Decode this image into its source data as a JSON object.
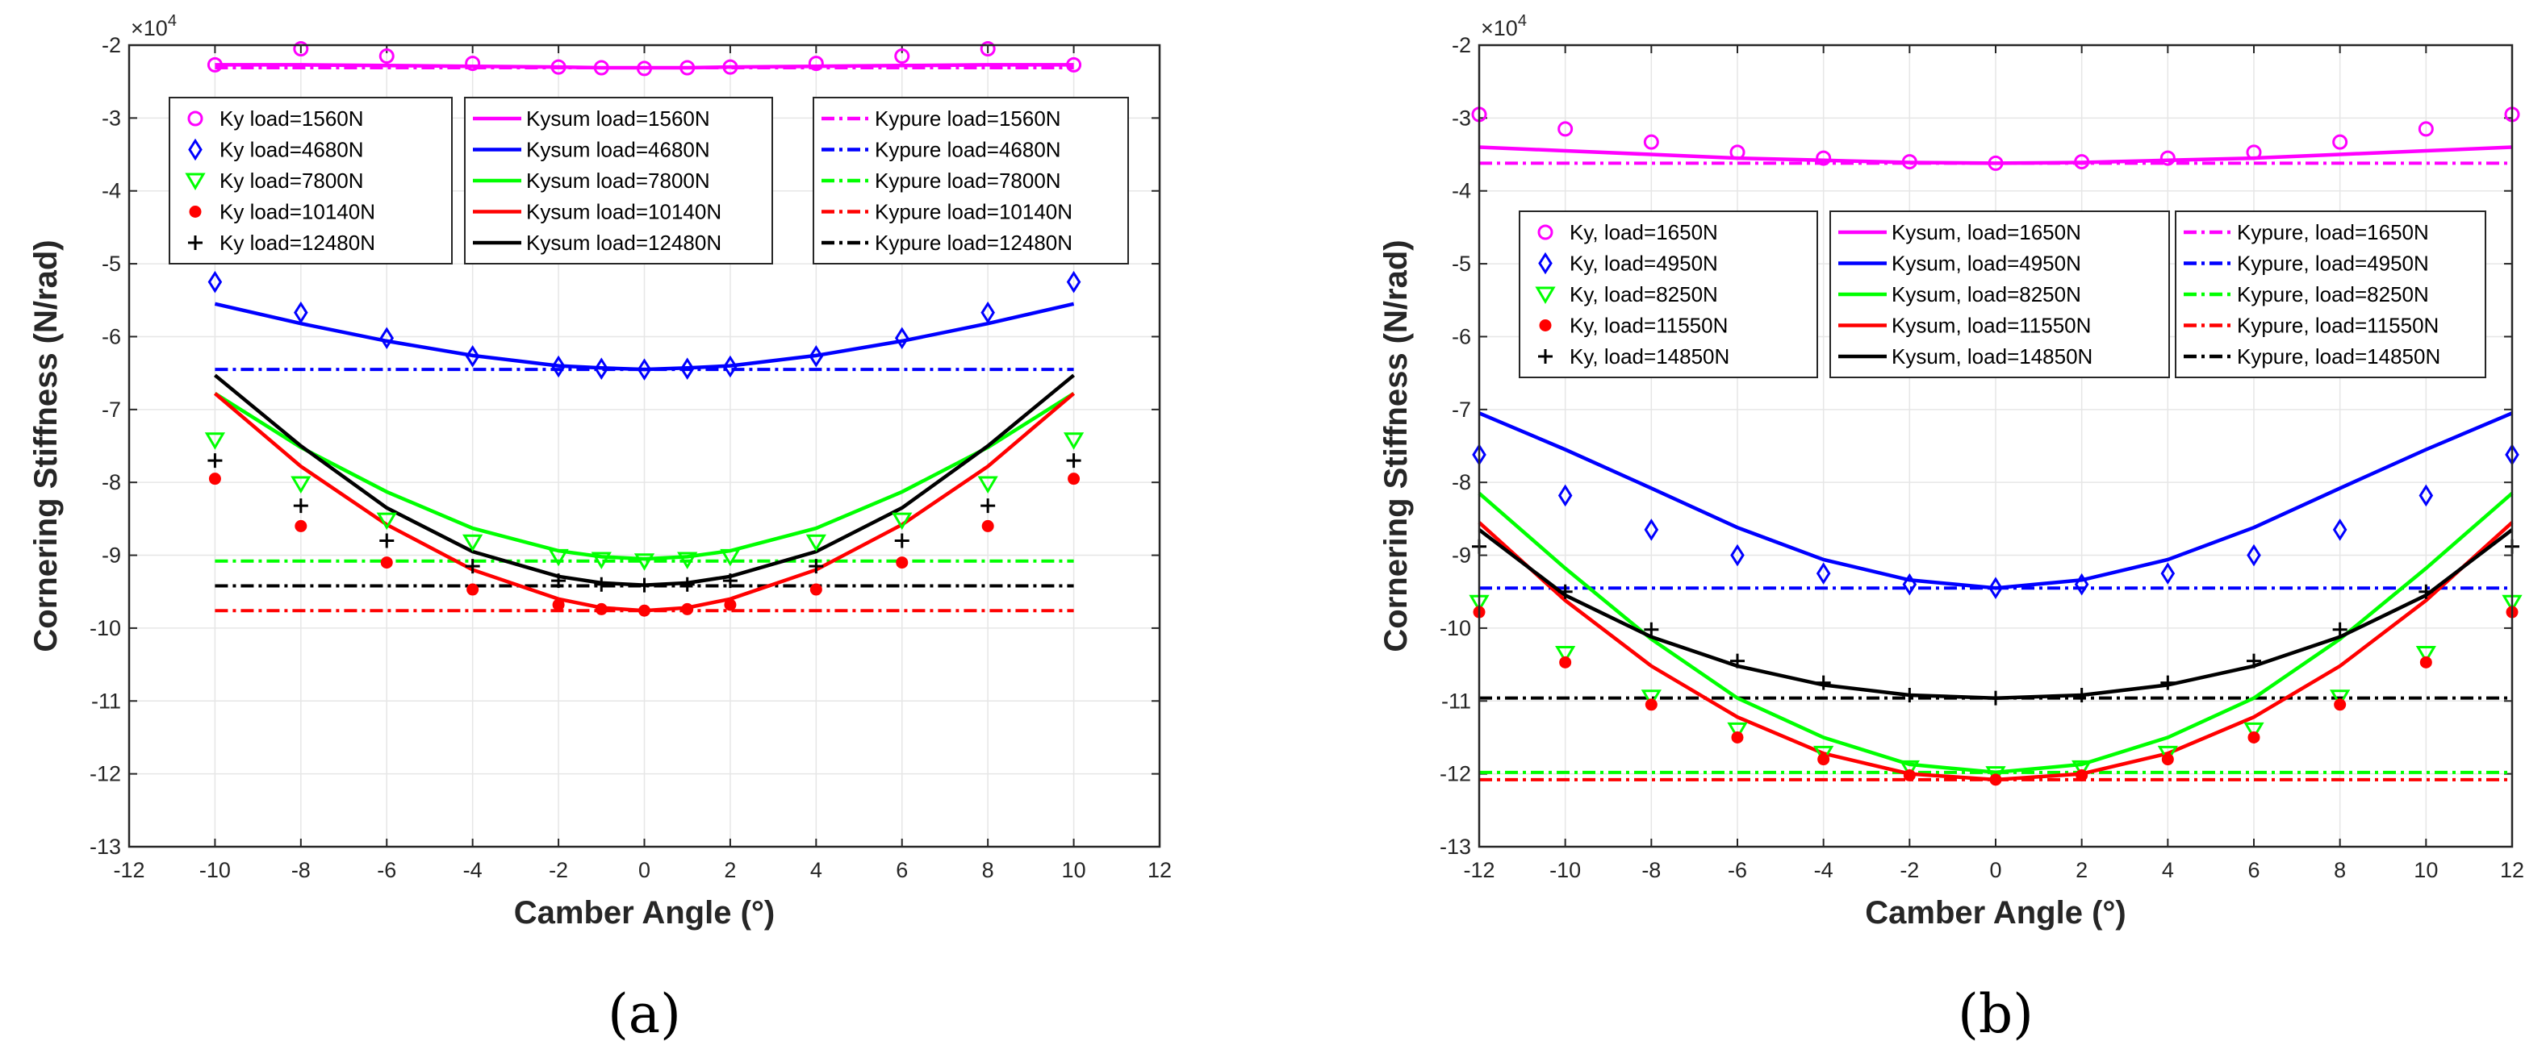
{
  "chart_data": [
    {
      "type": "line",
      "panel_label": "(a)",
      "xlabel": "Camber Angle (°)",
      "ylabel": "Cornering Stiffness (N/rad)",
      "y_exponent": "×10",
      "y_exponent_power": "4",
      "xlim": [
        -12,
        12
      ],
      "ylim": [
        -13,
        -2
      ],
      "xticks": [
        -12,
        -10,
        -8,
        -6,
        -4,
        -2,
        0,
        2,
        4,
        6,
        8,
        10,
        12
      ],
      "yticks": [
        -13,
        -12,
        -11,
        -10,
        -9,
        -8,
        -7,
        -6,
        -5,
        -4,
        -3,
        -2
      ],
      "grid": true,
      "ky_x": [
        -10,
        -8,
        -6,
        -4,
        -2,
        -1,
        0,
        1,
        2,
        4,
        6,
        8,
        10
      ],
      "curve_x": [
        -10,
        -8,
        -6,
        -4,
        -2,
        -1,
        0,
        1,
        2,
        4,
        6,
        8,
        10
      ],
      "series": [
        {
          "name": "Ky load=1560N",
          "group": "ky",
          "color": "#ff00ff",
          "marker": "circle",
          "values": [
            -2.27,
            -2.05,
            -2.15,
            -2.25,
            -2.3,
            -2.31,
            -2.32,
            -2.31,
            -2.3,
            -2.25,
            -2.15,
            -2.05,
            -2.27
          ]
        },
        {
          "name": "Ky load=4680N",
          "group": "ky",
          "color": "#0000ff",
          "marker": "diamond",
          "values": [
            -5.25,
            -5.67,
            -6.02,
            -6.27,
            -6.41,
            -6.44,
            -6.45,
            -6.44,
            -6.41,
            -6.27,
            -6.02,
            -5.67,
            -5.25
          ]
        },
        {
          "name": "Ky load=7800N",
          "group": "ky",
          "color": "#00ff00",
          "marker": "triangle",
          "values": [
            -7.42,
            -8.02,
            -8.52,
            -8.82,
            -9.02,
            -9.06,
            -9.08,
            -9.06,
            -9.02,
            -8.82,
            -8.52,
            -8.02,
            -7.42
          ]
        },
        {
          "name": "Ky load=10140N",
          "group": "ky",
          "color": "#ff0000",
          "marker": "dot",
          "values": [
            -7.95,
            -8.6,
            -9.1,
            -9.47,
            -9.68,
            -9.74,
            -9.76,
            -9.74,
            -9.68,
            -9.47,
            -9.1,
            -8.6,
            -7.95
          ]
        },
        {
          "name": "Ky load=12480N",
          "group": "ky",
          "color": "#000000",
          "marker": "plus",
          "values": [
            -7.7,
            -8.32,
            -8.8,
            -9.15,
            -9.35,
            -9.4,
            -9.41,
            -9.4,
            -9.35,
            -9.15,
            -8.8,
            -8.32,
            -7.7
          ]
        },
        {
          "name": "Kysum load=1560N",
          "group": "kysum",
          "color": "#ff00ff",
          "values": [
            -2.27,
            -2.27,
            -2.28,
            -2.29,
            -2.3,
            -2.31,
            -2.31,
            -2.31,
            -2.3,
            -2.29,
            -2.28,
            -2.27,
            -2.27
          ]
        },
        {
          "name": "Kysum load=4680N",
          "group": "kysum",
          "color": "#0000ff",
          "values": [
            -5.55,
            -5.82,
            -6.06,
            -6.26,
            -6.4,
            -6.43,
            -6.45,
            -6.43,
            -6.4,
            -6.26,
            -6.06,
            -5.82,
            -5.55
          ]
        },
        {
          "name": "Kysum load=7800N",
          "group": "kysum",
          "color": "#00ff00",
          "values": [
            -6.78,
            -7.52,
            -8.13,
            -8.63,
            -8.94,
            -9.02,
            -9.05,
            -9.02,
            -8.94,
            -8.63,
            -8.13,
            -7.52,
            -6.78
          ]
        },
        {
          "name": "Kysum load=10140N",
          "group": "kysum",
          "color": "#ff0000",
          "values": [
            -6.78,
            -7.78,
            -8.58,
            -9.2,
            -9.6,
            -9.72,
            -9.76,
            -9.72,
            -9.6,
            -9.2,
            -8.58,
            -7.78,
            -6.78
          ]
        },
        {
          "name": "Kysum load=12480N",
          "group": "kysum",
          "color": "#000000",
          "values": [
            -6.53,
            -7.5,
            -8.35,
            -8.95,
            -9.29,
            -9.38,
            -9.41,
            -9.38,
            -9.29,
            -8.95,
            -8.35,
            -7.5,
            -6.53
          ]
        },
        {
          "name": "Kypure load=1560N",
          "group": "kypure",
          "color": "#ff00ff",
          "value": -2.31
        },
        {
          "name": "Kypure load=4680N",
          "group": "kypure",
          "color": "#0000ff",
          "value": -6.45
        },
        {
          "name": "Kypure load=7800N",
          "group": "kypure",
          "color": "#00ff00",
          "value": -9.08
        },
        {
          "name": "Kypure load=10140N",
          "group": "kypure",
          "color": "#ff0000",
          "value": -9.76
        },
        {
          "name": "Kypure load=12480N",
          "group": "kypure",
          "color": "#000000",
          "value": -9.42
        }
      ]
    },
    {
      "type": "line",
      "panel_label": "(b)",
      "xlabel": "Camber Angle (°)",
      "ylabel": "Cornering Stiffness (N/rad)",
      "y_exponent": "×10",
      "y_exponent_power": "4",
      "xlim": [
        -12,
        12
      ],
      "ylim": [
        -13,
        -2
      ],
      "xticks": [
        -12,
        -10,
        -8,
        -6,
        -4,
        -2,
        0,
        2,
        4,
        6,
        8,
        10,
        12
      ],
      "yticks": [
        -13,
        -12,
        -11,
        -10,
        -9,
        -8,
        -7,
        -6,
        -5,
        -4,
        -3,
        -2
      ],
      "grid": true,
      "ky_x": [
        -12,
        -10,
        -8,
        -6,
        -4,
        -2,
        0,
        2,
        4,
        6,
        8,
        10,
        12
      ],
      "curve_x": [
        -12,
        -10,
        -8,
        -6,
        -4,
        -2,
        0,
        2,
        4,
        6,
        8,
        10,
        12
      ],
      "series": [
        {
          "name": "Ky, load=1650N",
          "group": "ky",
          "color": "#ff00ff",
          "marker": "circle",
          "values": [
            -2.95,
            -3.15,
            -3.33,
            -3.47,
            -3.55,
            -3.6,
            -3.62,
            -3.6,
            -3.55,
            -3.47,
            -3.33,
            -3.15,
            -2.95
          ]
        },
        {
          "name": "Ky, load=4950N",
          "group": "ky",
          "color": "#0000ff",
          "marker": "diamond",
          "values": [
            -7.62,
            -8.18,
            -8.65,
            -9.0,
            -9.25,
            -9.4,
            -9.45,
            -9.4,
            -9.25,
            -9.0,
            -8.65,
            -8.18,
            -7.62
          ]
        },
        {
          "name": "Ky, load=8250N",
          "group": "ky",
          "color": "#00ff00",
          "marker": "triangle",
          "values": [
            -9.65,
            -10.35,
            -10.95,
            -11.4,
            -11.72,
            -11.92,
            -12.0,
            -11.92,
            -11.72,
            -11.4,
            -10.95,
            -10.35,
            -9.65
          ]
        },
        {
          "name": "Ky, load=11550N",
          "group": "ky",
          "color": "#ff0000",
          "marker": "dot",
          "values": [
            -9.78,
            -10.47,
            -11.05,
            -11.5,
            -11.8,
            -12.02,
            -12.08,
            -12.02,
            -11.8,
            -11.5,
            -11.05,
            -10.47,
            -9.78
          ]
        },
        {
          "name": "Ky, load=14850N",
          "group": "ky",
          "color": "#000000",
          "marker": "plus",
          "values": [
            -8.88,
            -9.5,
            -10.02,
            -10.45,
            -10.75,
            -10.92,
            -10.96,
            -10.92,
            -10.75,
            -10.45,
            -10.02,
            -9.5,
            -8.88
          ]
        },
        {
          "name": "Kysum, load=1650N",
          "group": "kysum",
          "color": "#ff00ff",
          "values": [
            -3.4,
            -3.45,
            -3.5,
            -3.55,
            -3.58,
            -3.61,
            -3.62,
            -3.61,
            -3.58,
            -3.55,
            -3.5,
            -3.45,
            -3.4
          ]
        },
        {
          "name": "Kysum, load=4950N",
          "group": "kysum",
          "color": "#0000ff",
          "values": [
            -7.05,
            -7.55,
            -8.08,
            -8.62,
            -9.06,
            -9.34,
            -9.45,
            -9.34,
            -9.06,
            -8.62,
            -8.08,
            -7.55,
            -7.05
          ]
        },
        {
          "name": "Kysum, load=8250N",
          "group": "kysum",
          "color": "#00ff00",
          "values": [
            -8.15,
            -9.18,
            -10.15,
            -10.96,
            -11.5,
            -11.87,
            -11.98,
            -11.87,
            -11.5,
            -10.96,
            -10.15,
            -9.18,
            -8.15
          ]
        },
        {
          "name": "Kysum, load=11550N",
          "group": "kysum",
          "color": "#ff0000",
          "values": [
            -8.55,
            -9.62,
            -10.52,
            -11.22,
            -11.72,
            -12.0,
            -12.08,
            -12.0,
            -11.72,
            -11.22,
            -10.52,
            -9.62,
            -8.55
          ]
        },
        {
          "name": "Kysum, load=14850N",
          "group": "kysum",
          "color": "#000000",
          "values": [
            -8.65,
            -9.55,
            -10.12,
            -10.52,
            -10.78,
            -10.92,
            -10.96,
            -10.92,
            -10.78,
            -10.52,
            -10.12,
            -9.55,
            -8.65
          ]
        },
        {
          "name": "Kypure, load=1650N",
          "group": "kypure",
          "color": "#ff00ff",
          "value": -3.62
        },
        {
          "name": "Kypure, load=4950N",
          "group": "kypure",
          "color": "#0000ff",
          "value": -9.45
        },
        {
          "name": "Kypure, load=8250N",
          "group": "kypure",
          "color": "#00ff00",
          "value": -11.98
        },
        {
          "name": "Kypure, load=11550N",
          "group": "kypure",
          "color": "#ff0000",
          "value": -12.08
        },
        {
          "name": "Kypure, load=14850N",
          "group": "kypure",
          "color": "#000000",
          "value": -10.96
        }
      ]
    }
  ]
}
